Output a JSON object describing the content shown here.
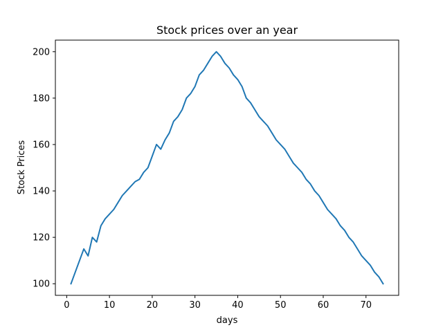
{
  "chart_data": {
    "type": "line",
    "title": "Stock prices over an year",
    "xlabel": "days",
    "ylabel": "Stock Prices",
    "xlim": [
      -2.65,
      77.65
    ],
    "ylim": [
      95,
      205
    ],
    "xticks": [
      0,
      10,
      20,
      30,
      40,
      50,
      60,
      70
    ],
    "yticks": [
      100,
      120,
      140,
      160,
      180,
      200
    ],
    "grid": false,
    "series": [
      {
        "color": "#1f77b4",
        "x": [
          1,
          2,
          3,
          4,
          5,
          6,
          7,
          8,
          9,
          10,
          11,
          12,
          13,
          14,
          15,
          16,
          17,
          18,
          19,
          20,
          21,
          22,
          23,
          24,
          25,
          26,
          27,
          28,
          29,
          30,
          31,
          32,
          33,
          34,
          35,
          36,
          37,
          38,
          39,
          40,
          41,
          42,
          43,
          44,
          45,
          46,
          47,
          48,
          49,
          50,
          51,
          52,
          53,
          54,
          55,
          56,
          57,
          58,
          59,
          60,
          61,
          62,
          63,
          64,
          65,
          66,
          67,
          68,
          69,
          70,
          71,
          72,
          73,
          74
        ],
        "y": [
          100,
          105,
          110,
          115,
          112,
          120,
          118,
          125,
          128,
          130,
          132,
          135,
          138,
          140,
          142,
          144,
          145,
          148,
          150,
          155,
          160,
          158,
          162,
          165,
          170,
          172,
          175,
          180,
          182,
          185,
          190,
          192,
          195,
          198,
          200,
          198,
          195,
          193,
          190,
          188,
          185,
          180,
          178,
          175,
          172,
          170,
          168,
          165,
          162,
          160,
          158,
          155,
          152,
          150,
          148,
          145,
          143,
          140,
          138,
          135,
          132,
          130,
          128,
          125,
          123,
          120,
          118,
          115,
          112,
          110,
          108,
          105,
          103,
          100
        ]
      }
    ]
  }
}
